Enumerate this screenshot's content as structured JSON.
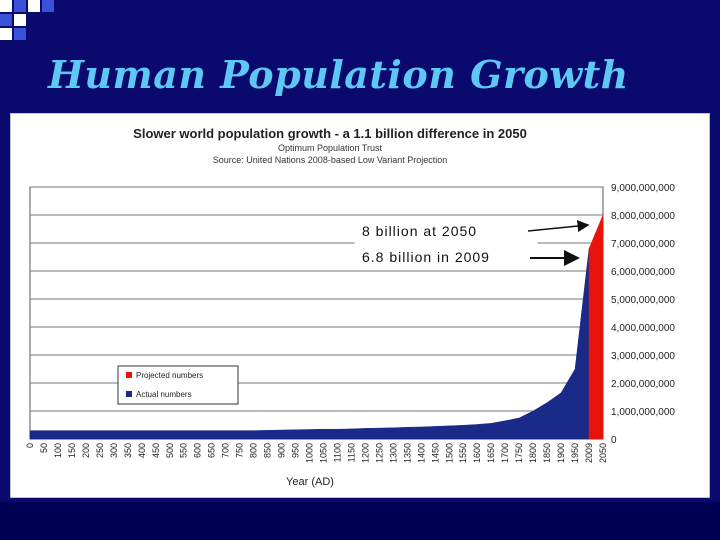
{
  "slide": {
    "title": "Human Population Growth"
  },
  "colors": {
    "background": "#0a0a6e",
    "title": "#5ec8f5",
    "actual": "#1a2a88",
    "projected": "#e8140c"
  },
  "chart_data": {
    "type": "area",
    "title": "Slower world population growth - a 1.1 billion difference in 2050",
    "subtitle": "Optimum Population Trust",
    "source": "Source: United Nations 2008-based Low Variant Projection",
    "xlabel": "Year (AD)",
    "ylabel": "",
    "ylim": [
      0,
      9000000000
    ],
    "y_axis_side": "right",
    "y_ticks": [
      "0",
      "1,000,000,000",
      "2,000,000,000",
      "3,000,000,000",
      "4,000,000,000",
      "5,000,000,000",
      "6,000,000,000",
      "7,000,000,000",
      "8,000,000,000",
      "9,000,000,000"
    ],
    "x_ticks": [
      "0",
      "50",
      "100",
      "150",
      "200",
      "250",
      "300",
      "350",
      "400",
      "450",
      "500",
      "550",
      "600",
      "650",
      "700",
      "750",
      "800",
      "850",
      "900",
      "950",
      "1000",
      "1050",
      "1100",
      "1150",
      "1200",
      "1250",
      "1300",
      "1350",
      "1400",
      "1450",
      "1500",
      "1550",
      "1600",
      "1650",
      "1700",
      "1750",
      "1800",
      "1850",
      "1900",
      "1950",
      "2009",
      "2050"
    ],
    "legend": {
      "placement": "lower-left",
      "entries": [
        {
          "label": "Projected numbers",
          "color": "#e8140c"
        },
        {
          "label": "Actual numbers",
          "color": "#1a2a88"
        }
      ]
    },
    "annotations": [
      {
        "text": "8 billion at 2050",
        "points_to": "2050"
      },
      {
        "text": "6.8 billion in 2009",
        "points_to": "2009"
      }
    ],
    "series": [
      {
        "name": "Actual numbers",
        "x": [
          "0",
          "50",
          "100",
          "150",
          "200",
          "250",
          "300",
          "350",
          "400",
          "450",
          "500",
          "550",
          "600",
          "650",
          "700",
          "750",
          "800",
          "850",
          "900",
          "950",
          "1000",
          "1050",
          "1100",
          "1150",
          "1200",
          "1250",
          "1300",
          "1350",
          "1400",
          "1450",
          "1500",
          "1550",
          "1600",
          "1650",
          "1700",
          "1750",
          "1800",
          "1850",
          "1900",
          "1950",
          "2009"
        ],
        "values": [
          300000000,
          300000000,
          300000000,
          300000000,
          300000000,
          300000000,
          300000000,
          300000000,
          300000000,
          300000000,
          300000000,
          300000000,
          300000000,
          300000000,
          300000000,
          300000000,
          300000000,
          310000000,
          320000000,
          330000000,
          340000000,
          350000000,
          350000000,
          360000000,
          380000000,
          390000000,
          400000000,
          420000000,
          430000000,
          450000000,
          470000000,
          490000000,
          520000000,
          560000000,
          650000000,
          750000000,
          1000000000,
          1300000000,
          1650000000,
          2500000000,
          6800000000
        ]
      },
      {
        "name": "Projected numbers",
        "x": [
          "2009",
          "2050"
        ],
        "values": [
          6800000000,
          8000000000
        ]
      }
    ],
    "grid": true
  }
}
